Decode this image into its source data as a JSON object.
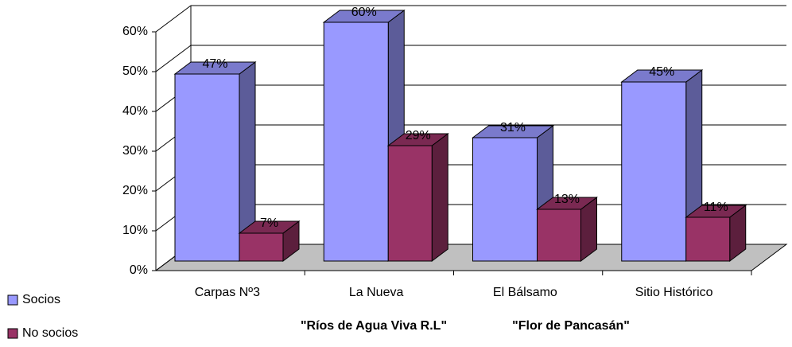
{
  "chart_data": {
    "type": "bar3d",
    "categories": [
      "Carpas Nº3",
      "La Nueva",
      "El Bálsamo",
      "Sitio Histórico"
    ],
    "series": [
      {
        "name": "Socios",
        "color": "#9999ff",
        "values": [
          47,
          60,
          31,
          45
        ],
        "value_labels": [
          "47%",
          "60%",
          "31%",
          "45%"
        ]
      },
      {
        "name": "No socios",
        "color": "#993366",
        "values": [
          7,
          29,
          13,
          11
        ],
        "value_labels": [
          "7%",
          "29%",
          "13%",
          "11%"
        ]
      }
    ],
    "ylim": [
      0,
      60
    ],
    "yticks": [
      {
        "value": 0,
        "label": "0%"
      },
      {
        "value": 10,
        "label": "10%"
      },
      {
        "value": 20,
        "label": "20%"
      },
      {
        "value": 30,
        "label": "30%"
      },
      {
        "value": 40,
        "label": "40%"
      },
      {
        "value": 50,
        "label": "50%"
      },
      {
        "value": 60,
        "label": "60%"
      }
    ],
    "annotations": [
      "\"Ríos de Agua Viva R.L\"",
      "\"Flor de Pancasán\""
    ],
    "grid": true,
    "legend": "bottom-left"
  }
}
